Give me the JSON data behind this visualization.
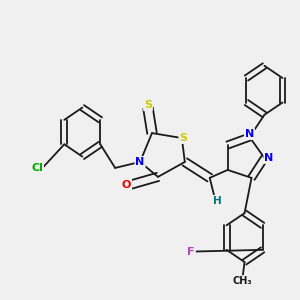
{
  "background_color": "#f0f0f0",
  "bond_color": "#1a1a1a",
  "atom_colors": {
    "S": "#cccc00",
    "N": "#0000ee",
    "O": "#ee0000",
    "Cl": "#00aa00",
    "F": "#bb44bb",
    "H": "#007777",
    "C": "#1a1a1a"
  },
  "figsize": [
    3.0,
    3.0
  ],
  "dpi": 100
}
